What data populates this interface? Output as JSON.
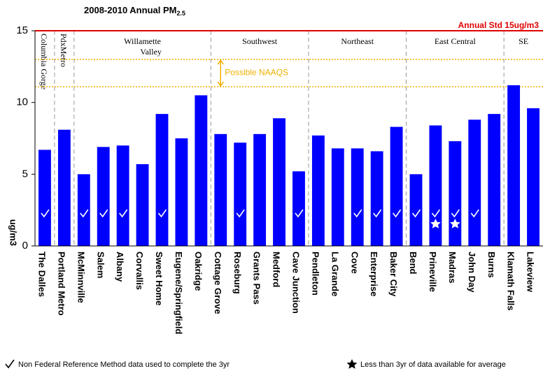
{
  "chart_data": {
    "type": "bar",
    "title": "2008-2010 Annual PM",
    "title_sub": "2.5",
    "y_label": "ug/m3",
    "categories": [
      "The Dalles",
      "Portland Metro",
      "McMinnville",
      "Salem",
      "Albany",
      "Corvallis",
      "Sweet Home",
      "Eugene/Springfield",
      "Oakridge",
      "Cottage Grove",
      "Roseburg",
      "Grants Pass",
      "Medford",
      "Cave Junction",
      "Pendleton",
      "La Grande",
      "Cove",
      "Enterprise",
      "Baker City",
      "Bend",
      "Prineville",
      "Madras",
      "John Day",
      "Burns",
      "Klamath Falls",
      "Lakeview"
    ],
    "values": [
      6.7,
      8.1,
      5.0,
      6.9,
      7.0,
      5.7,
      9.2,
      7.5,
      10.5,
      7.8,
      7.2,
      7.8,
      8.9,
      5.2,
      7.7,
      6.8,
      6.8,
      6.6,
      8.3,
      5.0,
      8.4,
      7.3,
      8.8,
      9.2,
      11.2,
      9.6
    ],
    "color": "#0000ff",
    "nfrm": [
      true,
      false,
      true,
      true,
      true,
      false,
      true,
      false,
      false,
      false,
      true,
      false,
      false,
      true,
      false,
      false,
      true,
      true,
      true,
      true,
      true,
      true,
      true,
      false,
      false,
      false
    ],
    "partial": [
      false,
      false,
      false,
      false,
      false,
      false,
      false,
      false,
      false,
      false,
      false,
      false,
      false,
      false,
      false,
      false,
      false,
      false,
      false,
      false,
      true,
      true,
      false,
      false,
      false,
      false
    ],
    "ylim": [
      0,
      15
    ],
    "yticks": [
      0,
      5,
      10,
      15
    ],
    "standard": {
      "value": 15,
      "label": "Annual Std 15ug/m3",
      "color": "#e00000"
    },
    "naaqs": {
      "values": [
        13,
        11.1
      ],
      "label": "Possible NAAQS",
      "color": "#f0b000"
    },
    "regions": [
      {
        "lines": [
          "Columbia Gorge"
        ],
        "start": 0,
        "end": 0,
        "rotated": true
      },
      {
        "lines": [
          "PdxMetro"
        ],
        "start": 1,
        "end": 1,
        "rotated": true
      },
      {
        "lines": [
          "Willamette",
          "Valley"
        ],
        "start": 2,
        "end": 8
      },
      {
        "lines": [
          "Southwest"
        ],
        "start": 9,
        "end": 13
      },
      {
        "lines": [
          "Northeast"
        ],
        "start": 14,
        "end": 18
      },
      {
        "lines": [
          "East Central"
        ],
        "start": 19,
        "end": 23
      },
      {
        "lines": [
          "SE"
        ],
        "start": 24,
        "end": 25
      }
    ],
    "legend": {
      "nfrm": "Non Federal Reference Method data used to complete the 3yr",
      "partial": "Less than 3yr of data available for average"
    }
  }
}
